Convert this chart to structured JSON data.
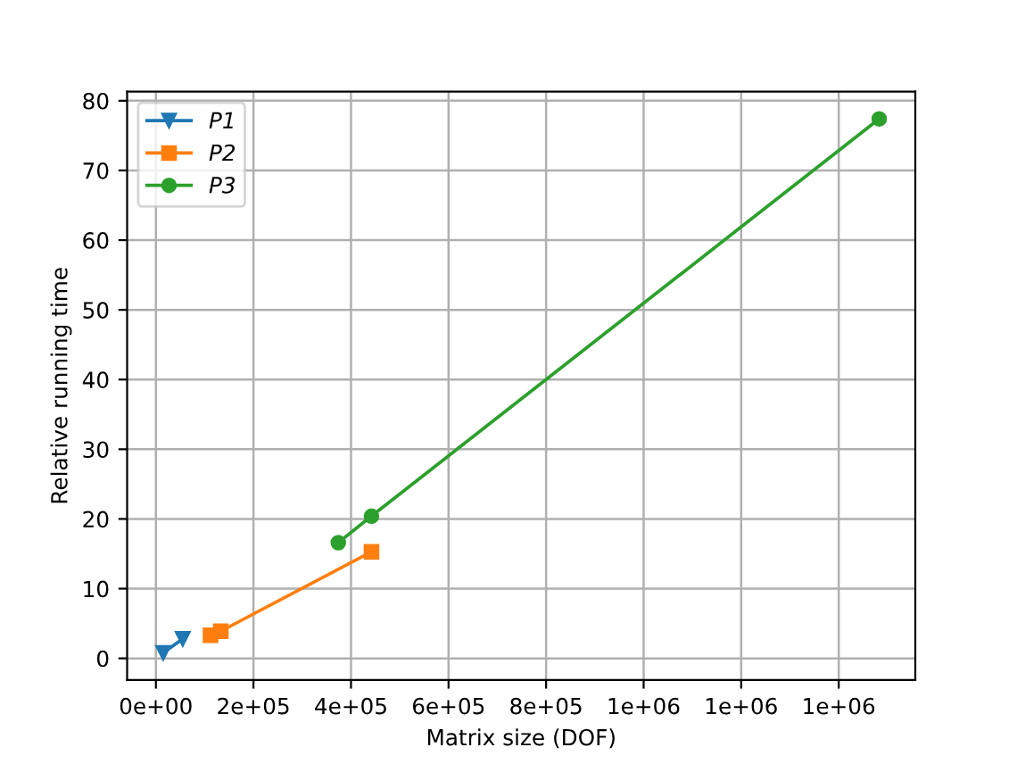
{
  "chart_data": {
    "type": "line",
    "xlabel": "Matrix size (DOF)",
    "ylabel": "Relative running time",
    "xlim": [
      -59000,
      1557000
    ],
    "ylim": [
      -3.1,
      81.3
    ],
    "xticks": [
      {
        "value": 0,
        "label": "0e+00"
      },
      {
        "value": 200000,
        "label": "2e+05"
      },
      {
        "value": 400000,
        "label": "4e+05"
      },
      {
        "value": 600000,
        "label": "6e+05"
      },
      {
        "value": 800000,
        "label": "8e+05"
      },
      {
        "value": 1000000,
        "label": "1e+06"
      },
      {
        "value": 1200000,
        "label": "1e+06"
      },
      {
        "value": 1400000,
        "label": "1e+06"
      }
    ],
    "yticks": [
      0,
      10,
      20,
      30,
      40,
      50,
      60,
      70,
      80
    ],
    "grid": true,
    "legend": "top left",
    "series": [
      {
        "name": "P1",
        "color": "#1f77b4",
        "marker": "triangle",
        "x": [
          15000,
          55000
        ],
        "values": [
          0.8,
          2.8
        ]
      },
      {
        "name": "P2",
        "color": "#ff7f0e",
        "marker": "square",
        "x": [
          112000,
          133000,
          442000
        ],
        "values": [
          3.3,
          3.9,
          15.3
        ]
      },
      {
        "name": "P3",
        "color": "#2ca02c",
        "marker": "circle",
        "x": [
          374000,
          442000,
          1483000
        ],
        "values": [
          16.6,
          20.4,
          77.4
        ]
      }
    ]
  }
}
